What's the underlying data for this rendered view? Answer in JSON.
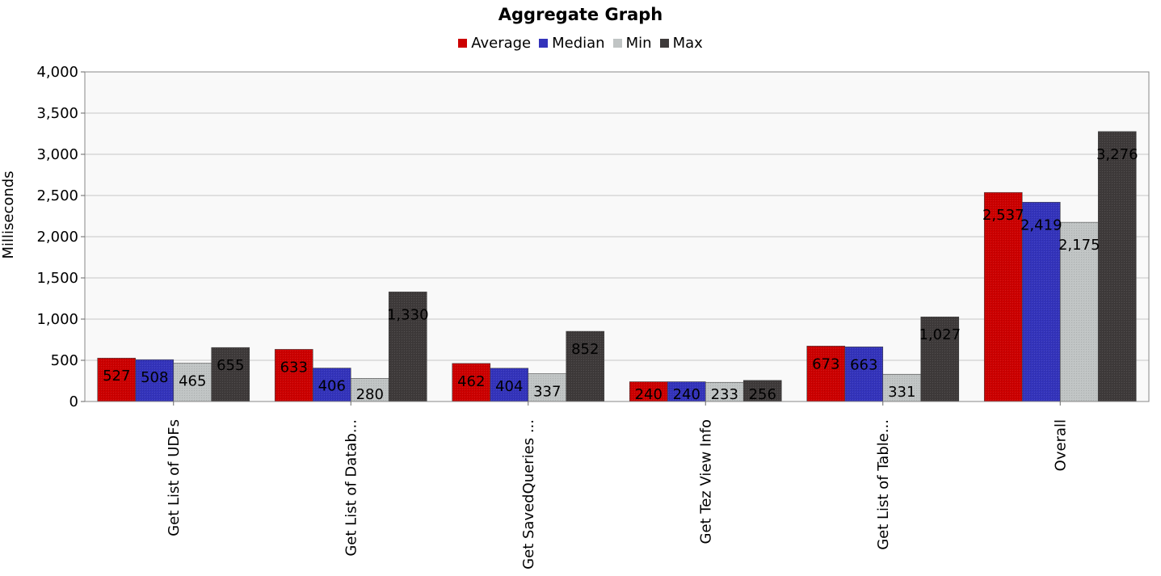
{
  "chart_data": {
    "type": "bar",
    "title": "Aggregate Graph",
    "xlabel": "",
    "ylabel": "Milliseconds",
    "ylim": [
      0,
      4000
    ],
    "yticks": [
      "0",
      "500",
      "1,000",
      "1,500",
      "2,000",
      "2,500",
      "3,000",
      "3,500",
      "4,000"
    ],
    "ytick_values": [
      0,
      500,
      1000,
      1500,
      2000,
      2500,
      3000,
      3500,
      4000
    ],
    "grid": true,
    "legend_position": "top-center",
    "categories": [
      "Get List of UDFs",
      "Get List of Datab...",
      "Get SavedQueries ...",
      "Get Tez View Info",
      "Get List of Table...",
      "Overall"
    ],
    "series": [
      {
        "name": "Average",
        "color": "#cc0000",
        "values": [
          527,
          633,
          462,
          240,
          673,
          2537
        ],
        "labels": [
          "527",
          "633",
          "462",
          "240",
          "673",
          "2,537"
        ]
      },
      {
        "name": "Median",
        "color": "#3333bb",
        "values": [
          508,
          406,
          404,
          240,
          663,
          2419
        ],
        "labels": [
          "508",
          "406",
          "404",
          "240",
          "663",
          "2,419"
        ]
      },
      {
        "name": "Min",
        "color": "#c0c4c4",
        "values": [
          465,
          280,
          337,
          233,
          331,
          2175
        ],
        "labels": [
          "465",
          "280",
          "337",
          "233",
          "331",
          "2,175"
        ]
      },
      {
        "name": "Max",
        "color": "#3e3a3a",
        "values": [
          655,
          1330,
          852,
          256,
          1027,
          3276
        ],
        "labels": [
          "655",
          "1,330",
          "852",
          "256",
          "1,027",
          "3,276"
        ]
      }
    ]
  }
}
